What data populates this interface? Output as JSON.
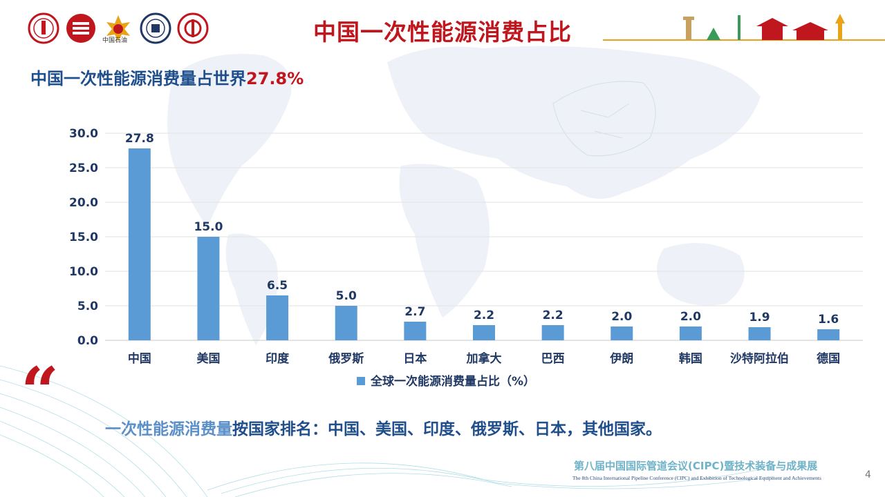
{
  "header": {
    "title": "中国一次性能源消费占比",
    "logo_label": "中国石油"
  },
  "subtitle": {
    "text": "中国一次性能源消费量占世界",
    "highlight": "27.8%"
  },
  "chart_data": {
    "type": "bar",
    "title": "",
    "xlabel": "",
    "ylabel": "",
    "categories": [
      "中国",
      "美国",
      "印度",
      "俄罗斯",
      "日本",
      "加拿大",
      "巴西",
      "伊朗",
      "韩国",
      "沙特阿拉伯",
      "德国"
    ],
    "series": [
      {
        "name": "全球一次能源消费量占比（%）",
        "values": [
          27.8,
          15.0,
          6.5,
          5.0,
          2.7,
          2.2,
          2.2,
          2.0,
          2.0,
          1.9,
          1.6
        ],
        "color": "#5b9bd5"
      }
    ],
    "ylim": [
      0,
      30
    ],
    "yticks": [
      0,
      5,
      10,
      15,
      20,
      25,
      30
    ],
    "grid": true,
    "legend": "bottom"
  },
  "summary": {
    "lead": "一次性能源消费量",
    "rest": "按国家排名：中国、美国、印度、俄罗斯、日本，其他国家。"
  },
  "footer": {
    "cn": "第八届中国国际管道会议(CIPC)暨技术装备与成果展",
    "en": "The 8th China International Pipeline Conference (CIPC) and Exhibition of Technological Equipment and Achievements",
    "page": "4"
  },
  "colors": {
    "title": "#c0161d",
    "subtitle": "#1f4e8c",
    "bar": "#5b9bd5",
    "axis_text": "#1f3864"
  }
}
